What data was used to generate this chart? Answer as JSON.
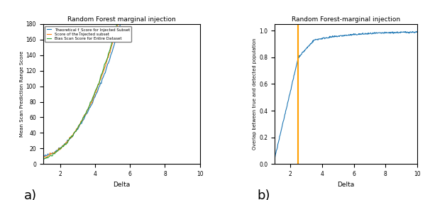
{
  "title_left": "Random Forest marginal injection",
  "title_right": "Random Forest-marginal injection",
  "xlabel_left": "Delta",
  "xlabel_right": "Delta",
  "ylabel_left": "Mean Scan Prediction Range Score",
  "ylabel_right": "Overlap between true and detected population",
  "legend_labels": [
    "Theoretical f_Score for Injected Subset",
    "Score of the Injected subset",
    "Bias Scan Score for Entire Dataset"
  ],
  "line_colors_left": [
    "#1f77b4",
    "#ff7f0e",
    "#2ca02c"
  ],
  "line_color_right": "#1f77b4",
  "vline_x": 2.5,
  "vline_color": "#ff9f00",
  "xlim_left": [
    1,
    10
  ],
  "xlim_right": [
    1,
    10
  ],
  "ylim_left": [
    0,
    180
  ],
  "ylim_right": [
    0.0,
    1.05
  ],
  "xticks_left": [
    2,
    4,
    6,
    8,
    10
  ],
  "xticks_right": [
    2,
    4,
    6,
    8,
    10
  ],
  "yticks_left": [
    0,
    20,
    40,
    60,
    80,
    100,
    120,
    140,
    160,
    180
  ],
  "yticks_right": [
    0.0,
    0.2,
    0.4,
    0.6,
    0.8,
    1.0
  ],
  "label_a": "a)",
  "label_b": "b)"
}
